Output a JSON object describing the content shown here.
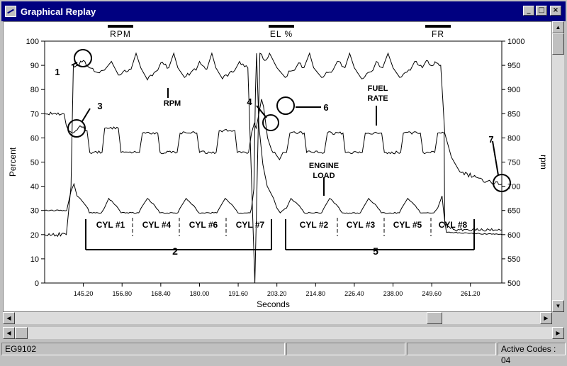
{
  "window": {
    "title": "Graphical Replay",
    "title_icon": "replay-chart-icon"
  },
  "legend": [
    {
      "label": "RPM"
    },
    {
      "label": "EL %"
    },
    {
      "label": "FR"
    }
  ],
  "chart_data": {
    "type": "line",
    "xlabel": "Seconds",
    "ylabel_left": "Percent",
    "ylabel_right": "rpm",
    "x_ticks": [
      "145.20",
      "156.80",
      "168.40",
      "180.00",
      "191.60",
      "203.20",
      "214.80",
      "226.40",
      "238.00",
      "249.60",
      "261.20"
    ],
    "y_left_ticks": [
      0,
      10,
      20,
      30,
      40,
      50,
      60,
      70,
      80,
      90,
      100
    ],
    "y_right_ticks": [
      500,
      550,
      600,
      650,
      700,
      750,
      800,
      850,
      900,
      950,
      1000
    ],
    "ylim_left": [
      0,
      100
    ],
    "ylim_right": [
      500,
      1000
    ],
    "xlim": [
      133.6,
      270.6
    ],
    "grid": false,
    "legend_position": "top",
    "series": [
      {
        "name": "RPM",
        "axis": "right",
        "points": [
          [
            133.6,
            600
          ],
          [
            140.1,
            600
          ],
          [
            141.5,
            700
          ],
          [
            142.2,
            950
          ],
          [
            143.5,
            950
          ],
          [
            145.2,
            960
          ],
          [
            147.0,
            945
          ],
          [
            149.5,
            935
          ],
          [
            151.5,
            940
          ],
          [
            153.6,
            958
          ],
          [
            155.7,
            930
          ],
          [
            157.6,
            940
          ],
          [
            159.5,
            942
          ],
          [
            161.0,
            975
          ],
          [
            162.4,
            945
          ],
          [
            164.4,
            920
          ],
          [
            166.4,
            935
          ],
          [
            167.5,
            940
          ],
          [
            168.4,
            955
          ],
          [
            170.8,
            945
          ],
          [
            172.3,
            975
          ],
          [
            173.5,
            945
          ],
          [
            175.5,
            925
          ],
          [
            177.4,
            935
          ],
          [
            179.0,
            940
          ],
          [
            180.0,
            958
          ],
          [
            182.2,
            942
          ],
          [
            183.7,
            975
          ],
          [
            184.9,
            945
          ],
          [
            186.9,
            922
          ],
          [
            189.0,
            935
          ],
          [
            190.6,
            940
          ],
          [
            192.0,
            958
          ],
          [
            194.5,
            945
          ],
          [
            196.6,
            500
          ],
          [
            198.1,
            975
          ],
          [
            199.6,
            960
          ],
          [
            201.0,
            975
          ],
          [
            203.2,
            945
          ],
          [
            205.7,
            925
          ],
          [
            207.3,
            938
          ],
          [
            208.5,
            940
          ],
          [
            209.7,
            955
          ],
          [
            211.3,
            945
          ],
          [
            213.0,
            975
          ],
          [
            214.2,
            945
          ],
          [
            216.6,
            925
          ],
          [
            218.5,
            935
          ],
          [
            220.0,
            940
          ],
          [
            221.3,
            958
          ],
          [
            223.6,
            945
          ],
          [
            225.0,
            975
          ],
          [
            226.4,
            945
          ],
          [
            228.6,
            922
          ],
          [
            230.5,
            935
          ],
          [
            232.0,
            940
          ],
          [
            233.0,
            958
          ],
          [
            234.9,
            945
          ],
          [
            236.5,
            975
          ],
          [
            238.0,
            945
          ],
          [
            240.0,
            925
          ],
          [
            241.6,
            935
          ],
          [
            243.2,
            940
          ],
          [
            244.5,
            958
          ],
          [
            246.8,
            945
          ],
          [
            248.0,
            960
          ],
          [
            249.3,
            950
          ],
          [
            251.0,
            955
          ],
          [
            252.3,
            950
          ],
          [
            253.5,
            810
          ],
          [
            255.5,
            760
          ],
          [
            258.0,
            730
          ],
          [
            262.0,
            720
          ],
          [
            266.0,
            710
          ],
          [
            270.6,
            705
          ]
        ]
      },
      {
        "name": "EL %",
        "axis": "left",
        "points": [
          [
            133.6,
            30
          ],
          [
            140.2,
            30
          ],
          [
            141.5,
            38
          ],
          [
            142.4,
            41
          ],
          [
            143.3,
            36
          ],
          [
            144.2,
            35
          ],
          [
            146.5,
            31
          ],
          [
            147.0,
            29
          ],
          [
            150.6,
            29
          ],
          [
            151.5,
            31
          ],
          [
            152.8,
            35
          ],
          [
            155.0,
            32
          ],
          [
            156.5,
            29
          ],
          [
            161.8,
            29
          ],
          [
            162.5,
            31
          ],
          [
            164.4,
            35
          ],
          [
            166.6,
            32
          ],
          [
            168.1,
            29
          ],
          [
            173.5,
            29
          ],
          [
            174.2,
            31
          ],
          [
            176.0,
            35
          ],
          [
            178.3,
            32
          ],
          [
            179.8,
            29
          ],
          [
            185.2,
            29
          ],
          [
            186.0,
            31
          ],
          [
            187.7,
            35
          ],
          [
            190.0,
            32
          ],
          [
            191.5,
            29
          ],
          [
            195.2,
            29
          ],
          [
            195.6,
            31
          ],
          [
            196.3,
            39
          ],
          [
            196.8,
            80
          ],
          [
            197.1,
            95
          ],
          [
            197.8,
            65
          ],
          [
            199.0,
            49
          ],
          [
            200.3,
            40
          ],
          [
            202.2,
            35
          ],
          [
            203.2,
            31
          ],
          [
            204.2,
            29
          ],
          [
            206.1,
            31
          ],
          [
            207.4,
            35
          ],
          [
            209.9,
            32
          ],
          [
            211.4,
            29
          ],
          [
            216.6,
            29
          ],
          [
            217.3,
            31
          ],
          [
            219.0,
            35
          ],
          [
            221.3,
            32
          ],
          [
            222.8,
            29
          ],
          [
            228.2,
            29
          ],
          [
            229.0,
            31
          ],
          [
            230.7,
            35
          ],
          [
            233.0,
            32
          ],
          [
            234.5,
            29
          ],
          [
            239.9,
            29
          ],
          [
            240.6,
            31
          ],
          [
            242.4,
            35
          ],
          [
            244.7,
            32
          ],
          [
            246.2,
            29
          ],
          [
            250.2,
            29
          ],
          [
            251.4,
            31
          ],
          [
            252.7,
            36
          ],
          [
            253.2,
            29
          ],
          [
            254.0,
            21
          ],
          [
            270.6,
            20
          ]
        ]
      },
      {
        "name": "FR",
        "axis": "left",
        "points": [
          [
            133.6,
            70
          ],
          [
            139.4,
            70
          ],
          [
            140.1,
            65
          ],
          [
            140.8,
            63
          ],
          [
            142.0,
            62
          ],
          [
            144.2,
            65
          ],
          [
            146.3,
            63
          ],
          [
            147.1,
            54
          ],
          [
            150.8,
            54
          ],
          [
            151.6,
            64
          ],
          [
            155.7,
            64
          ],
          [
            156.5,
            54
          ],
          [
            162.0,
            54
          ],
          [
            162.9,
            62
          ],
          [
            167.5,
            62
          ],
          [
            168.2,
            54
          ],
          [
            173.3,
            54
          ],
          [
            174.2,
            62
          ],
          [
            179.2,
            62
          ],
          [
            180.0,
            54
          ],
          [
            185.0,
            54
          ],
          [
            185.9,
            63
          ],
          [
            190.6,
            63
          ],
          [
            191.3,
            54
          ],
          [
            194.7,
            54
          ],
          [
            195.6,
            62
          ],
          [
            196.4,
            66
          ],
          [
            197.0,
            64
          ],
          [
            198.6,
            76
          ],
          [
            199.2,
            73
          ],
          [
            200.4,
            60
          ],
          [
            201.6,
            55
          ],
          [
            203.0,
            53
          ],
          [
            204.0,
            51
          ],
          [
            205.0,
            54
          ],
          [
            206.1,
            54
          ],
          [
            207.1,
            62
          ],
          [
            211.4,
            62
          ],
          [
            212.1,
            54
          ],
          [
            217.4,
            54
          ],
          [
            218.3,
            62
          ],
          [
            223.0,
            62
          ],
          [
            223.7,
            54
          ],
          [
            228.8,
            54
          ],
          [
            229.7,
            62
          ],
          [
            234.6,
            62
          ],
          [
            235.4,
            54
          ],
          [
            240.3,
            54
          ],
          [
            241.1,
            62
          ],
          [
            246.2,
            62
          ],
          [
            247.0,
            54
          ],
          [
            250.5,
            54
          ],
          [
            251.4,
            62
          ],
          [
            253.3,
            62
          ],
          [
            253.5,
            24
          ],
          [
            256.5,
            22
          ],
          [
            258.0,
            22
          ],
          [
            270.6,
            22
          ]
        ]
      }
    ],
    "annotations": [
      {
        "text": "1"
      },
      {
        "text": "2"
      },
      {
        "text": "3"
      },
      {
        "text": "4"
      },
      {
        "text": "5"
      },
      {
        "text": "6"
      },
      {
        "text": "7"
      },
      {
        "text": "RPM"
      },
      {
        "text": "FUEL"
      },
      {
        "text": "RATE"
      },
      {
        "text": "ENGINE"
      },
      {
        "text": "LOAD"
      },
      {
        "text": "CYL #1"
      },
      {
        "text": "CYL #4"
      },
      {
        "text": "CYL #6"
      },
      {
        "text": "CYL #7"
      },
      {
        "text": "CYL #2"
      },
      {
        "text": "CYL #3"
      },
      {
        "text": "CYL #5"
      },
      {
        "text": "CYL #8"
      }
    ]
  },
  "status": {
    "code": "EG9102",
    "active_codes": "Active Codes : 04"
  }
}
